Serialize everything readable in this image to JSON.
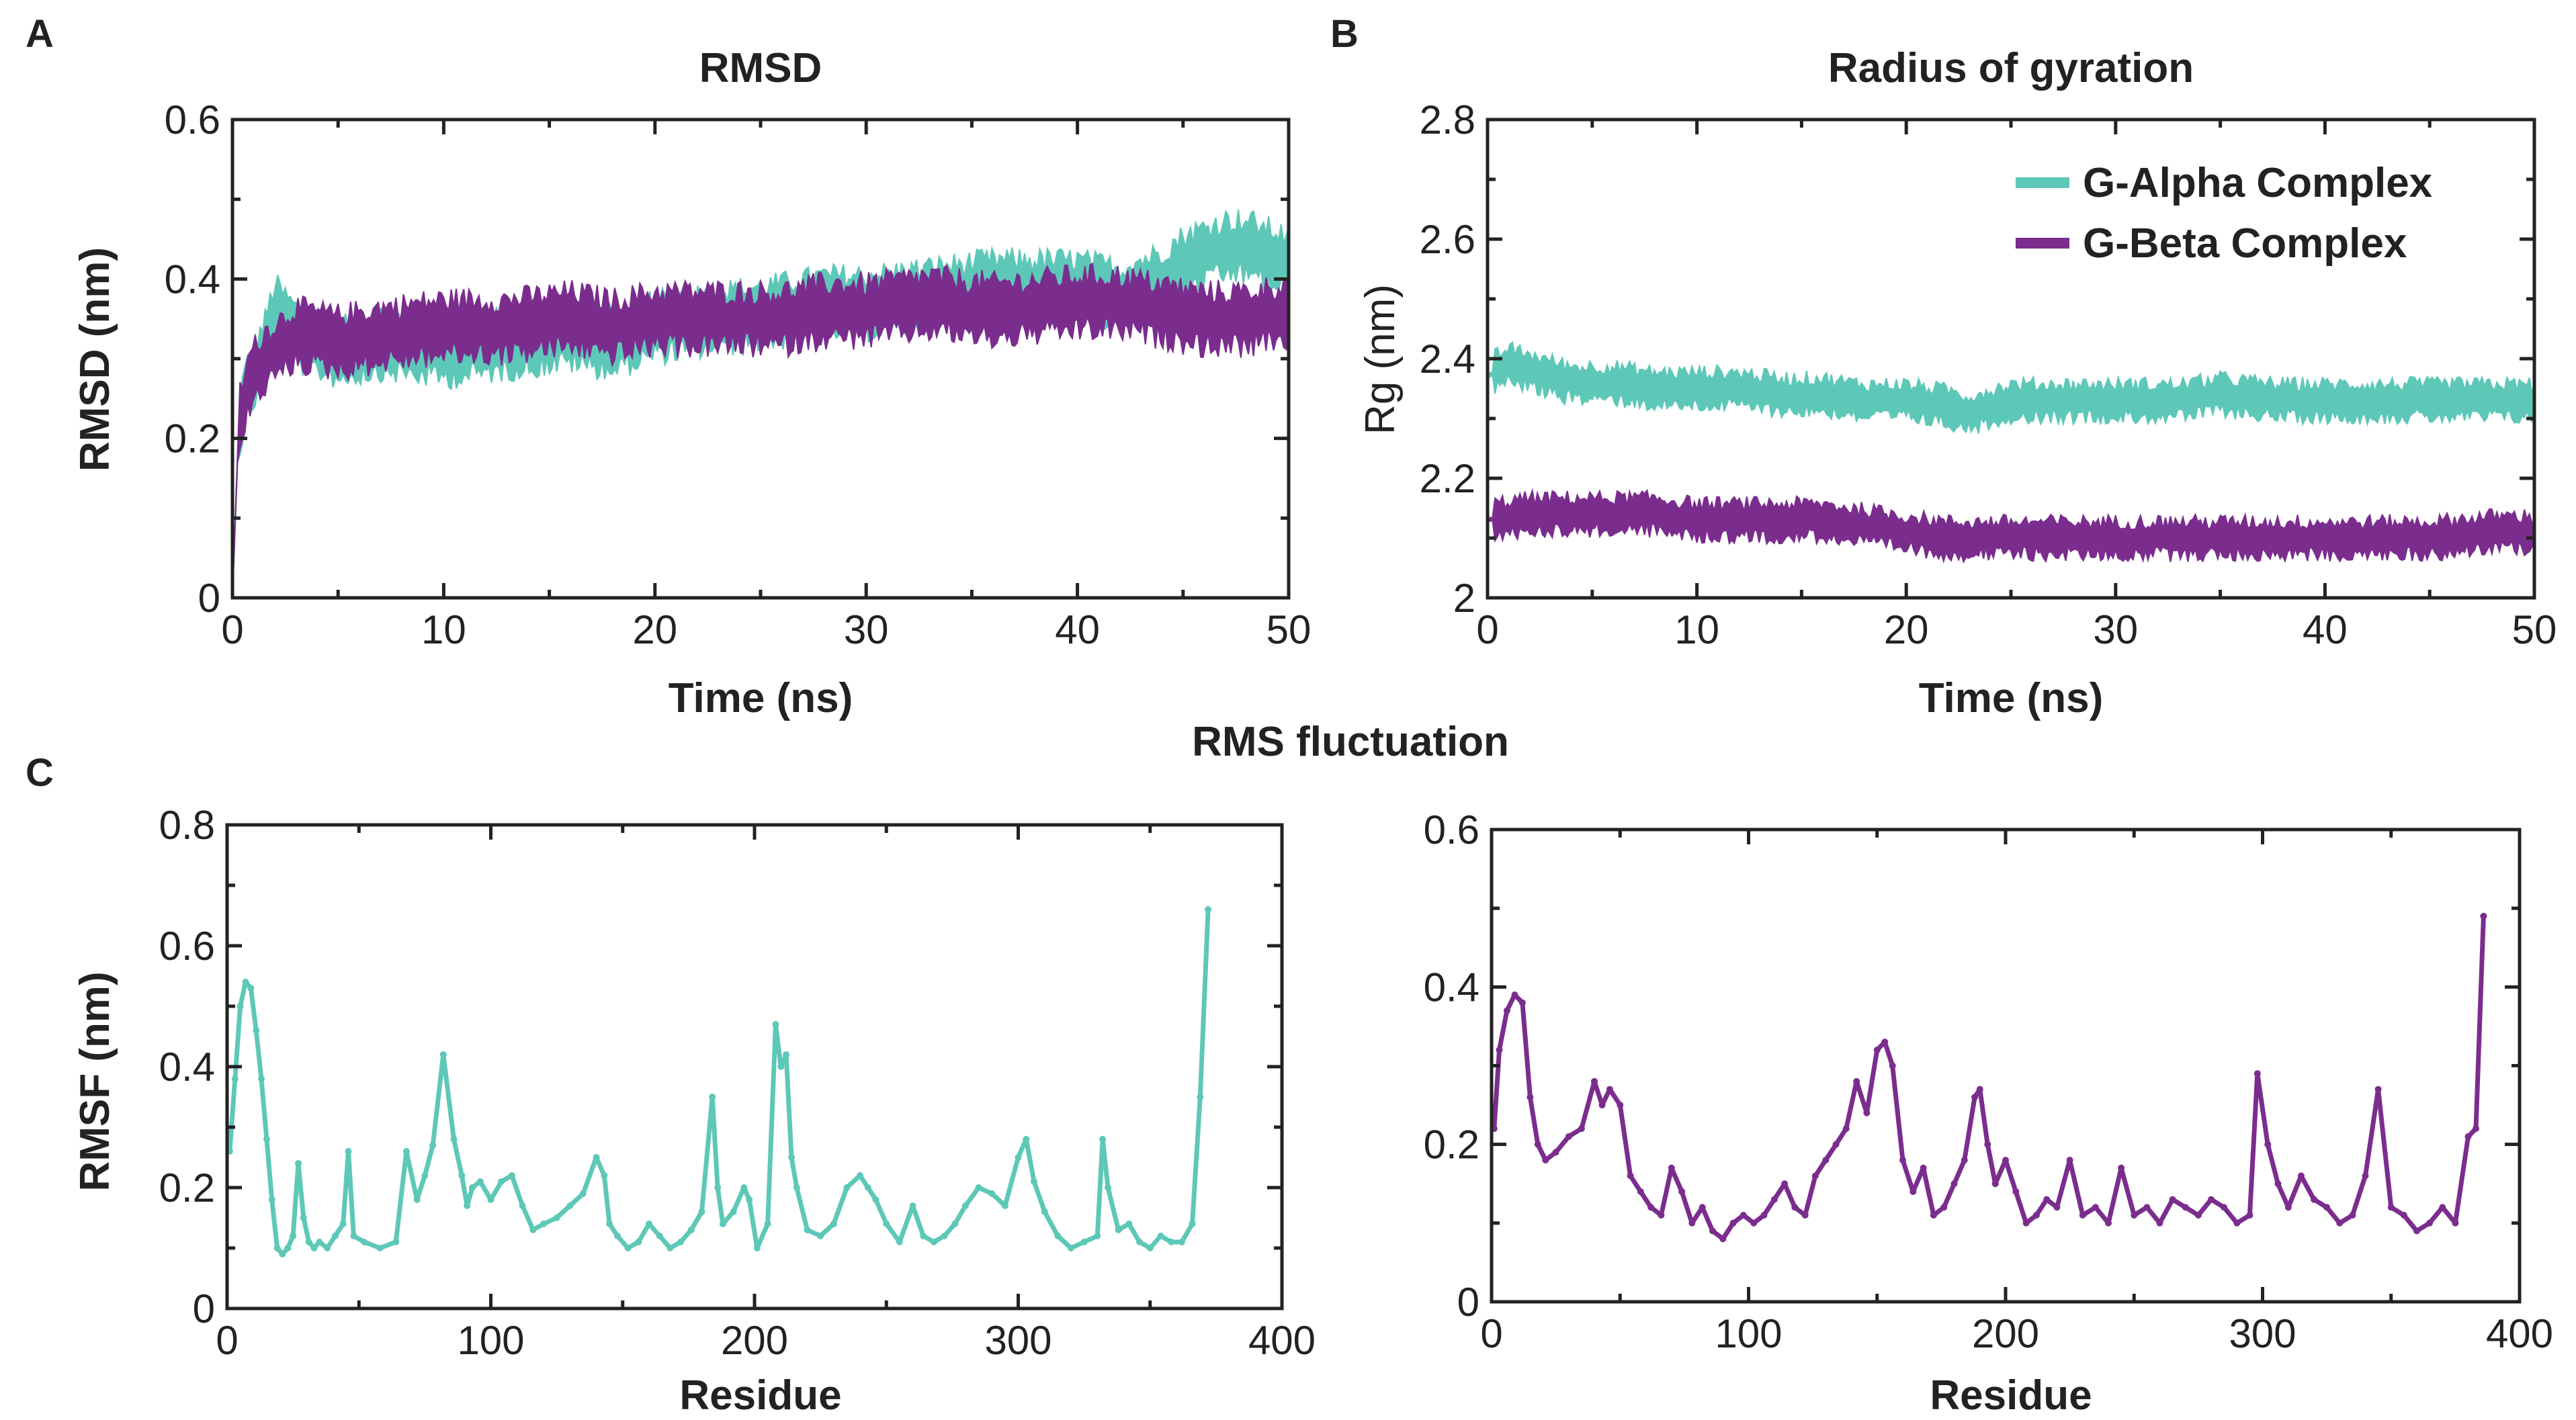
{
  "colors": {
    "alpha": "#5ec8b8",
    "beta": "#7b2d8e",
    "axis": "#222222"
  },
  "panel_letters": {
    "a": "A",
    "b": "B",
    "c": "C"
  },
  "section_titles": {
    "rmsf": "RMS fluctuation"
  },
  "chart_data": [
    {
      "id": "rmsd",
      "type": "line",
      "title": "RMSD",
      "xlabel": "Time (ns)",
      "ylabel": "RMSD (nm)",
      "xlim": [
        0,
        50
      ],
      "ylim": [
        0,
        0.6
      ],
      "xticks": [
        0,
        10,
        20,
        30,
        40,
        50
      ],
      "yticks": [
        0,
        0.2,
        0.4,
        0.6
      ],
      "xtick_labels": [
        "0",
        "10",
        "20",
        "30",
        "40",
        "50"
      ],
      "ytick_labels": [
        "0",
        "0.2",
        "0.4",
        "0.6"
      ],
      "series": [
        {
          "name": "G-Alpha Complex",
          "band": 0.05,
          "x": [
            0,
            0.3,
            0.8,
            1.5,
            2,
            3,
            5,
            7,
            10,
            13,
            16,
            18,
            20,
            23,
            26,
            28,
            30,
            33,
            36,
            40,
            42,
            44,
            45,
            46,
            47,
            48,
            49,
            50
          ],
          "y": [
            0.0,
            0.22,
            0.27,
            0.31,
            0.36,
            0.33,
            0.31,
            0.32,
            0.31,
            0.32,
            0.33,
            0.32,
            0.34,
            0.35,
            0.36,
            0.37,
            0.37,
            0.38,
            0.39,
            0.39,
            0.38,
            0.4,
            0.42,
            0.43,
            0.44,
            0.44,
            0.43,
            0.42
          ]
        },
        {
          "name": "G-Beta Complex",
          "band": 0.05,
          "x": [
            0,
            0.3,
            0.8,
            1.5,
            2,
            3,
            5,
            7,
            10,
            13,
            16,
            18,
            20,
            23,
            26,
            28,
            30,
            33,
            36,
            40,
            42,
            44,
            46,
            48,
            50
          ],
          "y": [
            0.0,
            0.22,
            0.27,
            0.3,
            0.31,
            0.33,
            0.32,
            0.33,
            0.34,
            0.34,
            0.35,
            0.34,
            0.35,
            0.35,
            0.35,
            0.36,
            0.36,
            0.37,
            0.36,
            0.37,
            0.37,
            0.36,
            0.35,
            0.35,
            0.36
          ]
        }
      ]
    },
    {
      "id": "rg",
      "type": "line",
      "title": "Radius of gyration",
      "xlabel": "Time (ns)",
      "ylabel": "Rg (nm)",
      "xlim": [
        0,
        50
      ],
      "ylim": [
        2,
        2.8
      ],
      "xticks": [
        0,
        10,
        20,
        30,
        40,
        50
      ],
      "yticks": [
        2,
        2.2,
        2.4,
        2.6,
        2.8
      ],
      "xtick_labels": [
        "0",
        "10",
        "20",
        "30",
        "40",
        "50"
      ],
      "ytick_labels": [
        "2",
        "2.2",
        "2.4",
        "2.6",
        "2.8"
      ],
      "legend": [
        "G-Alpha Complex",
        "G-Beta Complex"
      ],
      "legend_position": "top-right",
      "series": [
        {
          "name": "G-Alpha Complex",
          "band": 0.04,
          "x": [
            0,
            1,
            2,
            4,
            6,
            8,
            10,
            12,
            14,
            16,
            18,
            20,
            22,
            23,
            25,
            28,
            30,
            33,
            35,
            38,
            40,
            43,
            45,
            48,
            50
          ],
          "y": [
            2.37,
            2.39,
            2.38,
            2.36,
            2.36,
            2.35,
            2.35,
            2.35,
            2.34,
            2.34,
            2.33,
            2.33,
            2.32,
            2.31,
            2.33,
            2.33,
            2.33,
            2.33,
            2.34,
            2.33,
            2.33,
            2.33,
            2.33,
            2.33,
            2.33
          ]
        },
        {
          "name": "G-Beta Complex",
          "band": 0.04,
          "x": [
            0,
            2,
            4,
            6,
            8,
            10,
            12,
            14,
            16,
            18,
            20,
            22,
            23,
            25,
            28,
            30,
            33,
            35,
            38,
            40,
            43,
            45,
            48,
            50
          ],
          "y": [
            2.13,
            2.14,
            2.14,
            2.14,
            2.14,
            2.13,
            2.13,
            2.13,
            2.13,
            2.12,
            2.11,
            2.1,
            2.1,
            2.1,
            2.1,
            2.1,
            2.1,
            2.1,
            2.1,
            2.1,
            2.1,
            2.1,
            2.11,
            2.11
          ]
        }
      ]
    },
    {
      "id": "rmsf-alpha",
      "type": "line",
      "title": "",
      "xlabel": "Residue",
      "ylabel": "RMSF (nm)",
      "xlim": [
        0,
        400
      ],
      "ylim": [
        0,
        0.8
      ],
      "xticks": [
        0,
        100,
        200,
        300,
        400
      ],
      "yticks": [
        0,
        0.2,
        0.4,
        0.6,
        0.8
      ],
      "xtick_labels": [
        "0",
        "100",
        "200",
        "300",
        "400"
      ],
      "ytick_labels": [
        "0",
        "0.2",
        "0.4",
        "0.6",
        "0.8"
      ],
      "series": [
        {
          "name": "G-Alpha Complex",
          "x": [
            1,
            3,
            5,
            7,
            9,
            11,
            13,
            15,
            17,
            19,
            21,
            23,
            25,
            27,
            29,
            31,
            33,
            35,
            38,
            41,
            44,
            46,
            48,
            52,
            58,
            64,
            68,
            72,
            75,
            78,
            82,
            86,
            89,
            91,
            93,
            96,
            100,
            104,
            108,
            112,
            116,
            120,
            125,
            130,
            135,
            140,
            143,
            145,
            148,
            152,
            156,
            160,
            164,
            168,
            172,
            176,
            180,
            184,
            186,
            188,
            192,
            196,
            198,
            201,
            205,
            208,
            210,
            212,
            214,
            216,
            220,
            225,
            230,
            235,
            240,
            243,
            246,
            250,
            255,
            260,
            264,
            268,
            272,
            276,
            280,
            285,
            290,
            295,
            300,
            303,
            306,
            310,
            315,
            320,
            325,
            330,
            332,
            334,
            338,
            342,
            346,
            350,
            354,
            358,
            362,
            366,
            369,
            372
          ],
          "y": [
            0.26,
            0.38,
            0.5,
            0.54,
            0.53,
            0.46,
            0.38,
            0.28,
            0.18,
            0.1,
            0.09,
            0.1,
            0.12,
            0.24,
            0.15,
            0.11,
            0.1,
            0.11,
            0.1,
            0.12,
            0.14,
            0.26,
            0.12,
            0.11,
            0.1,
            0.11,
            0.26,
            0.18,
            0.22,
            0.27,
            0.42,
            0.28,
            0.22,
            0.17,
            0.2,
            0.21,
            0.18,
            0.21,
            0.22,
            0.17,
            0.13,
            0.14,
            0.15,
            0.17,
            0.19,
            0.25,
            0.22,
            0.14,
            0.12,
            0.1,
            0.11,
            0.14,
            0.12,
            0.1,
            0.11,
            0.13,
            0.16,
            0.35,
            0.2,
            0.14,
            0.16,
            0.2,
            0.18,
            0.1,
            0.14,
            0.47,
            0.4,
            0.42,
            0.25,
            0.2,
            0.13,
            0.12,
            0.14,
            0.2,
            0.22,
            0.2,
            0.18,
            0.14,
            0.11,
            0.17,
            0.12,
            0.11,
            0.12,
            0.14,
            0.17,
            0.2,
            0.19,
            0.17,
            0.25,
            0.28,
            0.21,
            0.16,
            0.12,
            0.1,
            0.11,
            0.12,
            0.28,
            0.2,
            0.13,
            0.14,
            0.11,
            0.1,
            0.12,
            0.11,
            0.11,
            0.14,
            0.35,
            0.66
          ]
        }
      ]
    },
    {
      "id": "rmsf-beta",
      "type": "line",
      "title": "",
      "xlabel": "Residue",
      "ylabel": "",
      "xlim": [
        0,
        400
      ],
      "ylim": [
        0,
        0.6
      ],
      "xticks": [
        0,
        100,
        200,
        300,
        400
      ],
      "yticks": [
        0,
        0.2,
        0.4,
        0.6
      ],
      "xtick_labels": [
        "0",
        "100",
        "200",
        "300",
        "400"
      ],
      "ytick_labels": [
        "0",
        "0.2",
        "0.4",
        "0.6"
      ],
      "series": [
        {
          "name": "G-Beta Complex",
          "x": [
            1,
            3,
            6,
            9,
            12,
            15,
            18,
            21,
            25,
            30,
            35,
            40,
            43,
            46,
            50,
            54,
            58,
            62,
            66,
            70,
            74,
            78,
            82,
            86,
            90,
            94,
            98,
            102,
            106,
            110,
            114,
            118,
            122,
            126,
            130,
            134,
            138,
            142,
            146,
            150,
            153,
            156,
            160,
            164,
            168,
            172,
            176,
            180,
            184,
            188,
            190,
            193,
            196,
            200,
            204,
            208,
            212,
            216,
            220,
            225,
            230,
            235,
            240,
            245,
            250,
            255,
            260,
            265,
            270,
            275,
            280,
            285,
            290,
            295,
            298,
            302,
            306,
            310,
            315,
            320,
            325,
            330,
            335,
            340,
            345,
            350,
            355,
            360,
            365,
            370,
            375,
            380,
            383,
            386
          ],
          "y": [
            0.22,
            0.32,
            0.37,
            0.39,
            0.38,
            0.26,
            0.2,
            0.18,
            0.19,
            0.21,
            0.22,
            0.28,
            0.25,
            0.27,
            0.25,
            0.16,
            0.14,
            0.12,
            0.11,
            0.17,
            0.14,
            0.1,
            0.12,
            0.09,
            0.08,
            0.1,
            0.11,
            0.1,
            0.11,
            0.13,
            0.15,
            0.12,
            0.11,
            0.16,
            0.18,
            0.2,
            0.22,
            0.28,
            0.24,
            0.32,
            0.33,
            0.3,
            0.18,
            0.14,
            0.17,
            0.11,
            0.12,
            0.15,
            0.18,
            0.26,
            0.27,
            0.2,
            0.15,
            0.18,
            0.14,
            0.1,
            0.11,
            0.13,
            0.12,
            0.18,
            0.11,
            0.12,
            0.1,
            0.17,
            0.11,
            0.12,
            0.1,
            0.13,
            0.12,
            0.11,
            0.13,
            0.12,
            0.1,
            0.11,
            0.29,
            0.2,
            0.15,
            0.12,
            0.16,
            0.13,
            0.12,
            0.1,
            0.11,
            0.16,
            0.27,
            0.12,
            0.11,
            0.09,
            0.1,
            0.12,
            0.1,
            0.21,
            0.22,
            0.49
          ]
        }
      ]
    }
  ]
}
